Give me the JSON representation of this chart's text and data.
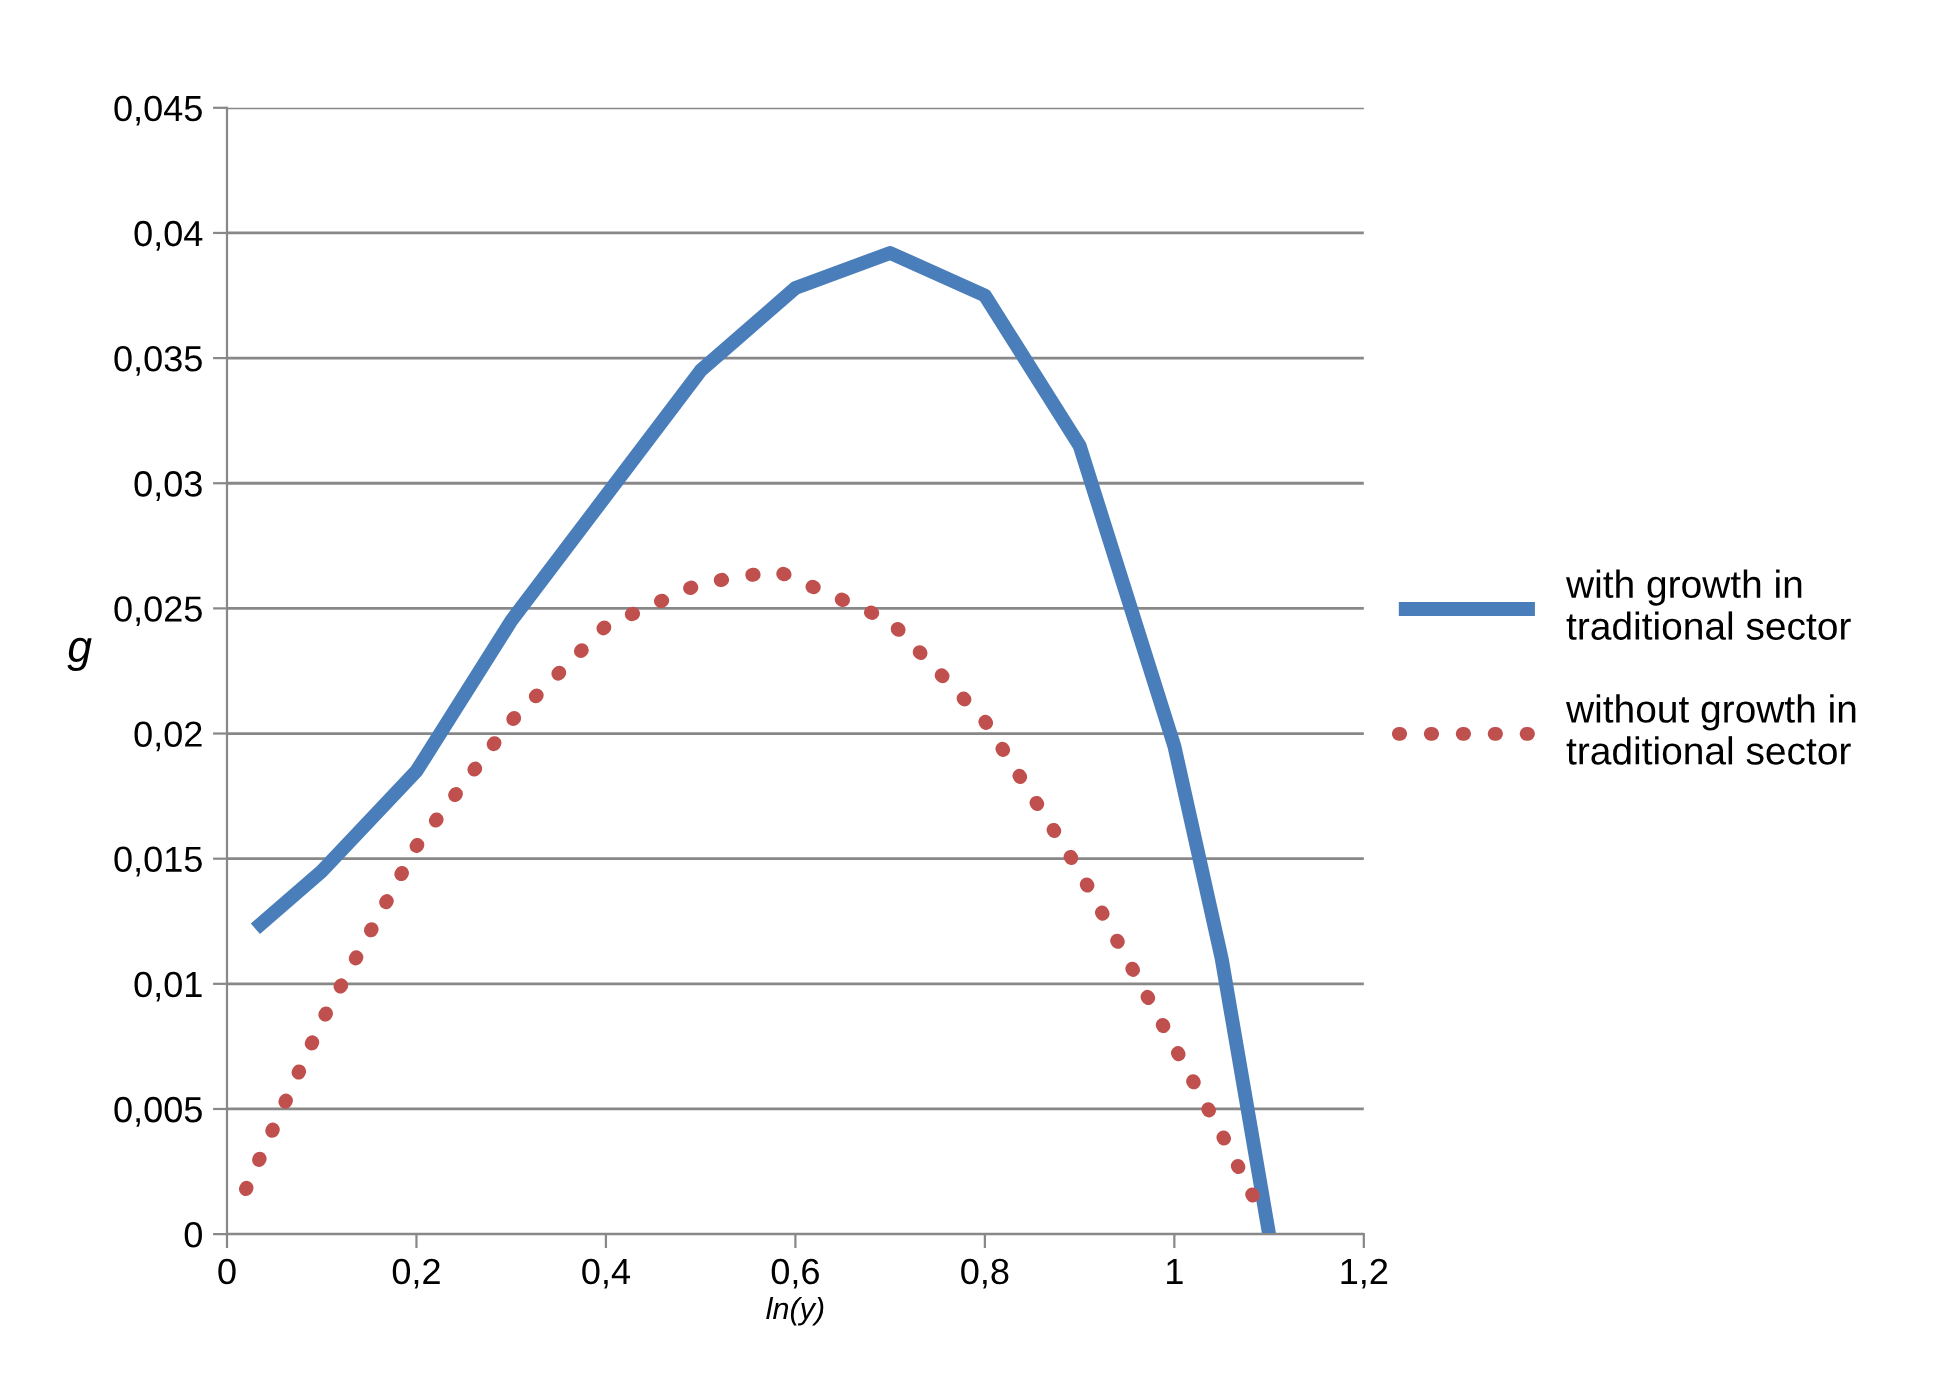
{
  "chart_data": {
    "type": "line",
    "xlabel": "ln(y)",
    "ylabel": "g",
    "xlim": [
      0,
      1.2
    ],
    "xticks": [
      {
        "value": 0,
        "label": "0"
      },
      {
        "value": 0.2,
        "label": "0,2"
      },
      {
        "value": 0.4,
        "label": "0,4"
      },
      {
        "value": 0.6,
        "label": "0,6"
      },
      {
        "value": 0.8,
        "label": "0,8"
      },
      {
        "value": 1,
        "label": "1"
      },
      {
        "value": 1.2,
        "label": "1,2"
      }
    ],
    "ylim": [
      0,
      0.045
    ],
    "yticks": [
      {
        "value": 0,
        "label": "0"
      },
      {
        "value": 0.005,
        "label": "0,005"
      },
      {
        "value": 0.01,
        "label": "0,01"
      },
      {
        "value": 0.015,
        "label": "0,015"
      },
      {
        "value": 0.02,
        "label": "0,02"
      },
      {
        "value": 0.025,
        "label": "0,025"
      },
      {
        "value": 0.03,
        "label": "0,03"
      },
      {
        "value": 0.035,
        "label": "0,035"
      },
      {
        "value": 0.04,
        "label": "0,04"
      },
      {
        "value": 0.045,
        "label": "0,045"
      }
    ],
    "grid": "y",
    "legend": "right",
    "series": [
      {
        "name": "with growth in traditional sector",
        "color": "#4a7ebb",
        "line_style": "solid",
        "x": [
          0.03,
          0.1,
          0.2,
          0.3,
          0.4,
          0.5,
          0.6,
          0.7,
          0.8,
          0.9,
          1.0,
          1.05,
          1.1
        ],
        "values": [
          0.0122,
          0.0145,
          0.0185,
          0.0245,
          0.0295,
          0.0345,
          0.0378,
          0.0392,
          0.0375,
          0.0315,
          0.0195,
          0.011,
          0
        ]
      },
      {
        "name": "without growth in traditional sector",
        "color": "#c0504d",
        "line_style": "dotted",
        "x": [
          0.02,
          0.1,
          0.2,
          0.3,
          0.4,
          0.5,
          0.58,
          0.7,
          0.8,
          0.9,
          1.0,
          1.05,
          1.09
        ],
        "values": [
          0.0018,
          0.0085,
          0.0155,
          0.0205,
          0.0243,
          0.026,
          0.0265,
          0.0245,
          0.0205,
          0.0145,
          0.0075,
          0.004,
          0.001
        ]
      }
    ]
  }
}
